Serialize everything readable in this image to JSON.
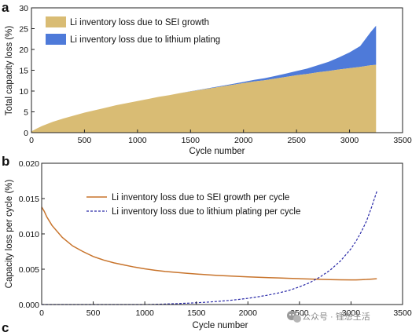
{
  "panels": {
    "a": "a",
    "b": "b",
    "c": "c"
  },
  "watermark": {
    "text": "公众号 · 锂想生活",
    "icon": "wechat-icon"
  },
  "chart_data": [
    {
      "id": "a",
      "type": "area",
      "stacked": true,
      "xlabel": "Cycle number",
      "ylabel": "Total capacity loss (%)",
      "xlim": [
        0,
        3500
      ],
      "ylim": [
        0,
        30
      ],
      "xticks": [
        0,
        500,
        1000,
        1500,
        2000,
        2500,
        3000,
        3500
      ],
      "yticks": [
        0,
        5,
        10,
        15,
        20,
        25,
        30
      ],
      "grid": false,
      "legend_position": "top-left",
      "x": [
        0,
        50,
        100,
        200,
        300,
        400,
        500,
        600,
        700,
        800,
        900,
        1000,
        1100,
        1200,
        1300,
        1400,
        1500,
        1600,
        1700,
        1800,
        1900,
        2000,
        2100,
        2200,
        2300,
        2400,
        2500,
        2600,
        2700,
        2800,
        2900,
        3000,
        3100,
        3200,
        3250
      ],
      "series": [
        {
          "name": "Li inventory loss due to SEI growth",
          "color": "#d9bc74",
          "values": [
            0.3,
            1.0,
            1.6,
            2.6,
            3.4,
            4.1,
            4.8,
            5.4,
            6.0,
            6.6,
            7.1,
            7.6,
            8.1,
            8.6,
            9.0,
            9.5,
            9.9,
            10.3,
            10.7,
            11.1,
            11.5,
            11.9,
            12.3,
            12.6,
            13.0,
            13.4,
            13.8,
            14.1,
            14.5,
            14.8,
            15.2,
            15.5,
            15.8,
            16.2,
            16.3
          ]
        },
        {
          "name": "Li inventory loss due to lithium plating",
          "color": "#4e7ad9",
          "values": [
            0,
            0,
            0,
            0,
            0,
            0,
            0,
            0,
            0,
            0,
            0,
            0,
            0,
            0,
            0,
            0,
            0.05,
            0.08,
            0.12,
            0.17,
            0.23,
            0.3,
            0.4,
            0.5,
            0.63,
            0.8,
            1.0,
            1.3,
            1.7,
            2.2,
            2.9,
            3.8,
            5.0,
            8.0,
            9.4
          ]
        }
      ]
    },
    {
      "id": "b",
      "type": "line",
      "xlabel": "Cycle number",
      "ylabel": "Capacity loss per cycle (%)",
      "xlim": [
        0,
        3500
      ],
      "ylim": [
        0,
        0.02
      ],
      "xticks": [
        0,
        500,
        1000,
        1500,
        2000,
        2500,
        3000,
        3500
      ],
      "yticks": [
        "0.000",
        "0.005",
        "0.010",
        "0.015",
        "0.020"
      ],
      "grid": false,
      "legend_position": "top-center",
      "x": [
        0,
        25,
        50,
        100,
        200,
        300,
        400,
        500,
        600,
        700,
        800,
        900,
        1000,
        1100,
        1200,
        1300,
        1400,
        1500,
        1600,
        1700,
        1800,
        1900,
        2000,
        2100,
        2200,
        2300,
        2400,
        2500,
        2600,
        2700,
        2800,
        2900,
        3000,
        3050,
        3100,
        3150,
        3200,
        3250
      ],
      "series": [
        {
          "name": "Li inventory loss due to SEI growth per cycle",
          "color": "#c8742c",
          "dash": "solid",
          "values": [
            0.0138,
            0.0132,
            0.0124,
            0.0112,
            0.0095,
            0.0083,
            0.0075,
            0.0068,
            0.0063,
            0.0059,
            0.0056,
            0.0053,
            0.00505,
            0.00485,
            0.00468,
            0.00455,
            0.00443,
            0.00432,
            0.00422,
            0.00413,
            0.00405,
            0.00398,
            0.00392,
            0.00386,
            0.00381,
            0.00376,
            0.00371,
            0.00366,
            0.00361,
            0.00357,
            0.00353,
            0.0035,
            0.00348,
            0.00349,
            0.00352,
            0.00355,
            0.0036,
            0.00365
          ]
        },
        {
          "name": "Li inventory loss due to lithium plating per cycle",
          "color": "#2a2aa8",
          "dash": "dashed",
          "values": [
            0,
            0,
            0,
            0,
            0,
            0,
            0,
            0,
            0,
            0,
            0,
            0,
            0,
            3e-05,
            7e-05,
            0.00012,
            0.00018,
            0.00025,
            0.00033,
            0.00044,
            0.00056,
            0.0007,
            0.00088,
            0.0011,
            0.00135,
            0.00165,
            0.002,
            0.0025,
            0.0031,
            0.0039,
            0.0049,
            0.0062,
            0.0079,
            0.009,
            0.0103,
            0.0118,
            0.0138,
            0.016
          ]
        }
      ]
    }
  ]
}
